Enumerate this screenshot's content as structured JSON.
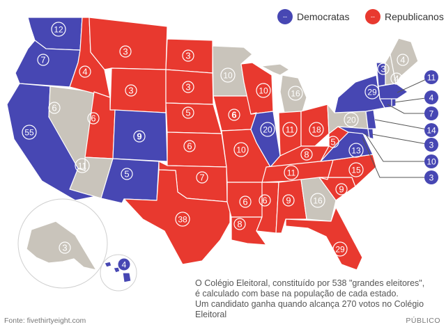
{
  "legend": {
    "dem": {
      "symbol": "--",
      "label": "Democratas",
      "color": "#4747b3"
    },
    "rep": {
      "symbol": "--",
      "label": "Republicanos",
      "color": "#e8392f"
    }
  },
  "toss_color": "#c9c4bb",
  "note": {
    "line1": "O Colégio Eleitoral, constituído por 538 \"grandes eleitores\",",
    "line2": "é calculado com base na população de cada estado.",
    "line3": "Um candidato ganha quando alcança 270 votos no Colégio Eleitoral"
  },
  "source": "Fonte: fivethirtyeight.com",
  "brand": "PÚBLICO",
  "states": {
    "wa": {
      "label": "12",
      "party": "dem"
    },
    "or": {
      "label": "7",
      "party": "dem"
    },
    "ca": {
      "label": "55",
      "party": "dem"
    },
    "nv": {
      "label": "6",
      "party": "toss"
    },
    "id": {
      "label": "4",
      "party": "rep"
    },
    "mt": {
      "label": "3",
      "party": "rep"
    },
    "wy": {
      "label": "3",
      "party": "rep"
    },
    "ut": {
      "label": "6",
      "party": "rep"
    },
    "az": {
      "label": "11",
      "party": "toss"
    },
    "co": {
      "label": "9",
      "party": "dem"
    },
    "nm": {
      "label": "5",
      "party": "dem"
    },
    "nd": {
      "label": "3",
      "party": "rep"
    },
    "sd": {
      "label": "3",
      "party": "rep"
    },
    "ne": {
      "label": "5",
      "party": "rep"
    },
    "ks": {
      "label": "6",
      "party": "rep"
    },
    "ok": {
      "label": "7",
      "party": "rep"
    },
    "tx": {
      "label": "38",
      "party": "rep"
    },
    "mn": {
      "label": "10",
      "party": "toss"
    },
    "ia": {
      "label": "6",
      "party": "rep"
    },
    "mo": {
      "label": "10",
      "party": "rep"
    },
    "ar": {
      "label": "6",
      "party": "rep"
    },
    "la": {
      "label": "8",
      "party": "rep"
    },
    "wi": {
      "label": "10",
      "party": "rep"
    },
    "il": {
      "label": "20",
      "party": "dem"
    },
    "mi": {
      "label": "16",
      "party": "toss"
    },
    "in": {
      "label": "11",
      "party": "rep"
    },
    "oh": {
      "label": "18",
      "party": "rep"
    },
    "ky": {
      "label": "8",
      "party": "rep"
    },
    "tn": {
      "label": "11",
      "party": "rep"
    },
    "ms": {
      "label": "6",
      "party": "rep"
    },
    "al": {
      "label": "9",
      "party": "rep"
    },
    "ga": {
      "label": "16",
      "party": "toss"
    },
    "fl": {
      "label": "29",
      "party": "rep"
    },
    "sc": {
      "label": "9",
      "party": "rep"
    },
    "nc": {
      "label": "15",
      "party": "rep"
    },
    "va": {
      "label": "13",
      "party": "dem"
    },
    "wv": {
      "label": "5",
      "party": "rep"
    },
    "pa": {
      "label": "20",
      "party": "toss"
    },
    "ny": {
      "label": "29",
      "party": "dem"
    },
    "vt": {
      "label": "3",
      "party": "dem"
    },
    "nh": {
      "label": "4",
      "party": "toss"
    },
    "me": {
      "label": "4",
      "party": "toss"
    },
    "ma": {
      "label": "11",
      "party": "dem"
    },
    "ri": {
      "label": "4",
      "party": "dem"
    },
    "ct": {
      "label": "7",
      "party": "dem"
    },
    "nj": {
      "label": "14",
      "party": "dem"
    },
    "de": {
      "label": "3",
      "party": "dem"
    },
    "md": {
      "label": "10",
      "party": "dem"
    },
    "dc": {
      "label": "3",
      "party": "dem"
    },
    "ak": {
      "label": "3",
      "party": "toss"
    },
    "hi": {
      "label": "4",
      "party": "dem"
    }
  }
}
